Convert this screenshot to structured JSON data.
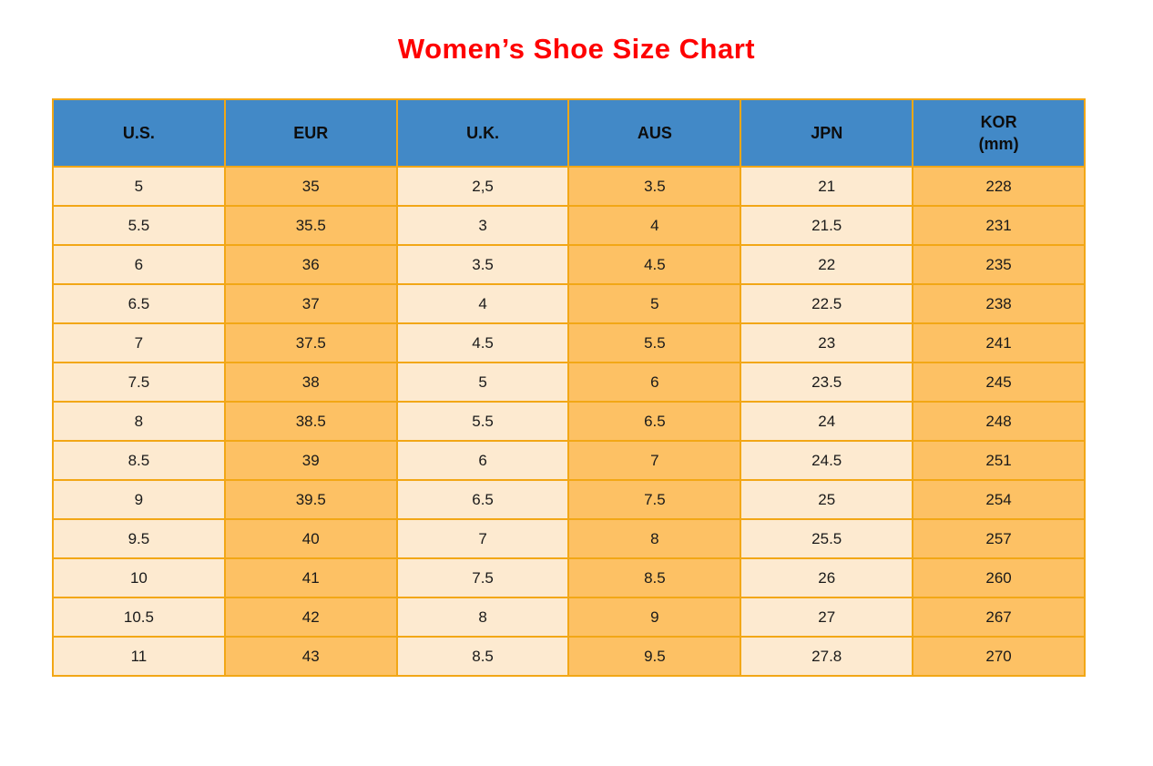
{
  "title": "Women’s Shoe Size Chart",
  "colors": {
    "title_red": "#fe0000",
    "header_blue": "#4289c7",
    "cell_cream": "#fdead0",
    "cell_orange": "#fdc164",
    "grid_orange": "#f2a716",
    "text": "#1a1a1a"
  },
  "chart_data": {
    "type": "table",
    "title": "Women’s Shoe Size Chart",
    "columns": [
      "U.S.",
      "EUR",
      "U.K.",
      "AUS",
      "JPN",
      "KOR (mm)"
    ],
    "header_lines": [
      [
        "U.S."
      ],
      [
        "EUR"
      ],
      [
        "U.K."
      ],
      [
        "AUS"
      ],
      [
        "JPN"
      ],
      [
        "KOR",
        "(mm)"
      ]
    ],
    "rows": [
      [
        "5",
        "35",
        "2,5",
        "3.5",
        "21",
        "228"
      ],
      [
        "5.5",
        "35.5",
        "3",
        "4",
        "21.5",
        "231"
      ],
      [
        "6",
        "36",
        "3.5",
        "4.5",
        "22",
        "235"
      ],
      [
        "6.5",
        "37",
        "4",
        "5",
        "22.5",
        "238"
      ],
      [
        "7",
        "37.5",
        "4.5",
        "5.5",
        "23",
        "241"
      ],
      [
        "7.5",
        "38",
        "5",
        "6",
        "23.5",
        "245"
      ],
      [
        "8",
        "38.5",
        "5.5",
        "6.5",
        "24",
        "248"
      ],
      [
        "8.5",
        "39",
        "6",
        "7",
        "24.5",
        "251"
      ],
      [
        "9",
        "39.5",
        "6.5",
        "7.5",
        "25",
        "254"
      ],
      [
        "9.5",
        "40",
        "7",
        "8",
        "25.5",
        "257"
      ],
      [
        "10",
        "41",
        "7.5",
        "8.5",
        "26",
        "260"
      ],
      [
        "10.5",
        "42",
        "8",
        "9",
        "27",
        "267"
      ],
      [
        "11",
        "43",
        "8.5",
        "9.5",
        "27.8",
        "270"
      ]
    ]
  }
}
